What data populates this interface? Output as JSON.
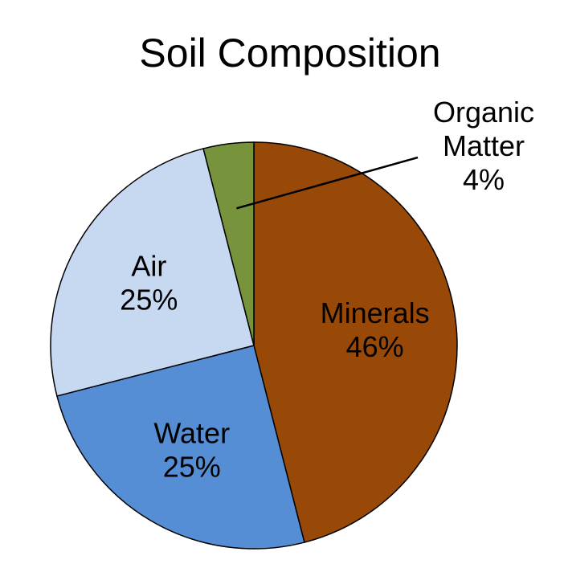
{
  "chart_data": {
    "type": "pie",
    "title": "Soil Composition",
    "start_angle_deg": 0,
    "direction": "clockwise",
    "slices": [
      {
        "name_lines": [
          "Minerals"
        ],
        "value": 46,
        "value_label": "46%",
        "color": "#984807",
        "label_placement": "inside"
      },
      {
        "name_lines": [
          "Water"
        ],
        "value": 25,
        "value_label": "25%",
        "color": "#558ED5",
        "label_placement": "inside"
      },
      {
        "name_lines": [
          "Air"
        ],
        "value": 25,
        "value_label": "25%",
        "color": "#C6D9F1",
        "label_placement": "inside"
      },
      {
        "name_lines": [
          "Organic",
          "Matter"
        ],
        "value": 4,
        "value_label": "4%",
        "color": "#77933C",
        "label_placement": "outside-with-leader"
      }
    ]
  }
}
